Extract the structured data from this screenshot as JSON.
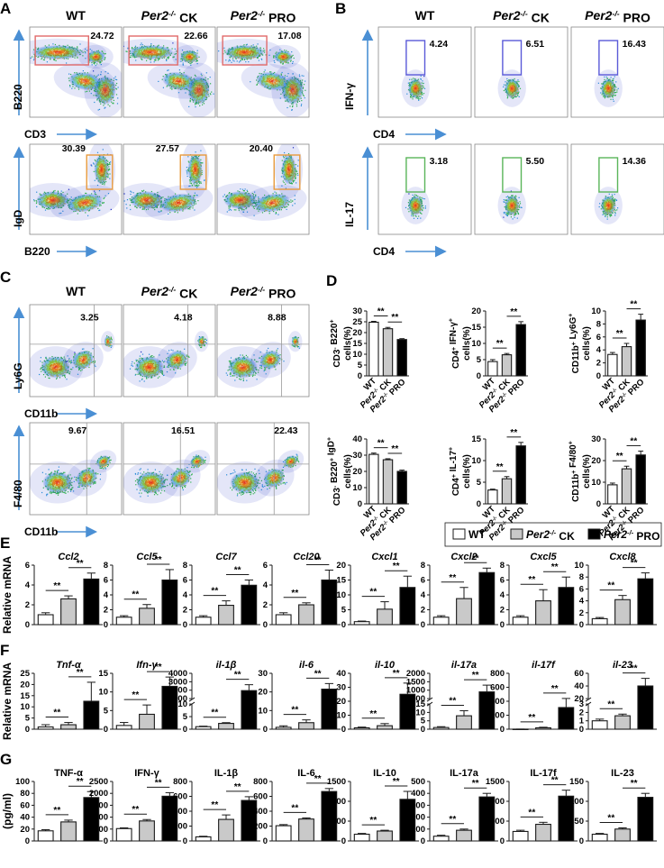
{
  "colors": {
    "axis": "#1a1a1a",
    "arrow": "#4a8fd4",
    "gate_red": "#e06a6a",
    "gate_orange": "#e89a3c",
    "gate_blue": "#5a5ad8",
    "gate_green": "#5ab55a",
    "quad": "#9a9a9a"
  },
  "panel_labels": {
    "A": "A",
    "B": "B",
    "C": "C",
    "D": "D",
    "E": "E",
    "F": "F",
    "G": "G"
  },
  "groups": {
    "wt": "WT",
    "ck_base": "Per2",
    "ck_sup": "-/-",
    "ck_tail": " CK",
    "pro_base": "Per2",
    "pro_sup": "-/-",
    "pro_tail": " PRO"
  },
  "flow": {
    "A": {
      "top": {
        "y": "B220",
        "x": "CD3",
        "values": [
          "24.72",
          "22.66",
          "17.08"
        ]
      },
      "bottom": {
        "y": "IgD",
        "x": "B220",
        "values": [
          "30.39",
          "27.57",
          "20.40"
        ]
      }
    },
    "B": {
      "top": {
        "y": "IFN-γ",
        "x": "CD4",
        "values": [
          "4.24",
          "6.51",
          "16.43"
        ]
      },
      "bottom": {
        "y": "IL-17",
        "x": "CD4",
        "values": [
          "3.18",
          "5.50",
          "14.36"
        ]
      }
    },
    "C": {
      "top": {
        "y": "Ly6G",
        "x": "CD11b",
        "values": [
          "3.25",
          "4.18",
          "8.88"
        ]
      },
      "bottom": {
        "y": "F4/80",
        "x": "CD11b",
        "values": [
          "9.67",
          "16.51",
          "22.43"
        ]
      }
    }
  },
  "legend": {
    "wt": "WT",
    "ck": "Per2-/- CK",
    "pro": "Per2-/- PRO"
  },
  "row_labels": {
    "E": "Relative mRNA",
    "F": "Relative mRNA",
    "G": "(pg/ml)"
  },
  "sig_mark": "**",
  "chart_data": [
    {
      "panel": "D",
      "type": "bar",
      "title": "",
      "ylabel": "CD3- B220+ cells(%)",
      "categories": [
        "WT",
        "Per2-/- CK",
        "Per2-/- PRO"
      ],
      "values": [
        24.8,
        21.8,
        16.8
      ],
      "errors": [
        0.4,
        0.6,
        0.4
      ],
      "ylim": [
        0,
        30
      ],
      "yticks": [
        0,
        5,
        10,
        15,
        20,
        25,
        30
      ]
    },
    {
      "panel": "D",
      "type": "bar",
      "title": "",
      "ylabel": "CD4+ IFN-γ+ cells(%)",
      "categories": [
        "WT",
        "Per2-/- CK",
        "Per2-/- PRO"
      ],
      "values": [
        4.4,
        6.5,
        15.8
      ],
      "errors": [
        0.6,
        0.4,
        0.9
      ],
      "ylim": [
        0,
        20
      ],
      "yticks": [
        0,
        5,
        10,
        15,
        20
      ]
    },
    {
      "panel": "D",
      "type": "bar",
      "title": "",
      "ylabel": "CD11b+ Ly6G+ cells(%)",
      "categories": [
        "WT",
        "Per2-/- CK",
        "Per2-/- PRO"
      ],
      "values": [
        3.3,
        4.5,
        8.6
      ],
      "errors": [
        0.3,
        0.5,
        0.9
      ],
      "ylim": [
        0,
        10
      ],
      "yticks": [
        0,
        2,
        4,
        6,
        8,
        10
      ]
    },
    {
      "panel": "D",
      "type": "bar",
      "title": "",
      "ylabel": "CD3- B220+ IgD+ cells(%)",
      "categories": [
        "WT",
        "Per2-/- CK",
        "Per2-/- PRO"
      ],
      "values": [
        30.5,
        27.2,
        20.0
      ],
      "errors": [
        0.8,
        0.6,
        0.8
      ],
      "ylim": [
        0,
        40
      ],
      "yticks": [
        0,
        10,
        20,
        30,
        40
      ]
    },
    {
      "panel": "D",
      "type": "bar",
      "title": "",
      "ylabel": "CD4+ IL-17+ cells(%)",
      "categories": [
        "WT",
        "Per2-/- CK",
        "Per2-/- PRO"
      ],
      "values": [
        3.2,
        5.8,
        13.4
      ],
      "errors": [
        0.2,
        0.5,
        0.8
      ],
      "ylim": [
        0,
        15
      ],
      "yticks": [
        0,
        5,
        10,
        15
      ]
    },
    {
      "panel": "D",
      "type": "bar",
      "title": "",
      "ylabel": "CD11b+ F4/80+ cells(%)",
      "categories": [
        "WT",
        "Per2-/- CK",
        "Per2-/- PRO"
      ],
      "values": [
        8.8,
        16.2,
        22.6
      ],
      "errors": [
        0.8,
        1.2,
        1.8
      ],
      "ylim": [
        0,
        30
      ],
      "yticks": [
        0,
        10,
        20,
        30
      ]
    },
    {
      "panel": "E",
      "type": "bar",
      "title": "Ccl2",
      "categories": [
        "WT",
        "Per2-/- CK",
        "Per2-/- PRO"
      ],
      "values": [
        1.0,
        2.6,
        4.6
      ],
      "errors": [
        0.2,
        0.3,
        0.6
      ],
      "ylim": [
        0,
        6
      ],
      "yticks": [
        0,
        2,
        4,
        6
      ]
    },
    {
      "panel": "E",
      "type": "bar",
      "title": "Ccl5",
      "categories": [
        "WT",
        "Per2-/- CK",
        "Per2-/- PRO"
      ],
      "values": [
        1.0,
        2.2,
        6.0
      ],
      "errors": [
        0.2,
        0.5,
        1.4
      ],
      "ylim": [
        0,
        8
      ],
      "yticks": [
        0,
        2,
        4,
        6,
        8
      ]
    },
    {
      "panel": "E",
      "type": "bar",
      "title": "Ccl7",
      "categories": [
        "WT",
        "Per2-/- CK",
        "Per2-/- PRO"
      ],
      "values": [
        1.0,
        2.6,
        5.3
      ],
      "errors": [
        0.2,
        0.6,
        0.7
      ],
      "ylim": [
        0,
        8
      ],
      "yticks": [
        0,
        2,
        4,
        6,
        8
      ]
    },
    {
      "panel": "E",
      "type": "bar",
      "title": "Ccl20",
      "categories": [
        "WT",
        "Per2-/- CK",
        "Per2-/- PRO"
      ],
      "values": [
        1.0,
        2.0,
        4.5
      ],
      "errors": [
        0.2,
        0.2,
        1.0
      ],
      "ylim": [
        0,
        6
      ],
      "yticks": [
        0,
        2,
        4,
        6
      ]
    },
    {
      "panel": "E",
      "type": "bar",
      "title": "Cxcl1",
      "categories": [
        "WT",
        "Per2-/- CK",
        "Per2-/- PRO"
      ],
      "values": [
        1.0,
        5.2,
        12.5
      ],
      "errors": [
        0.2,
        2.5,
        3.8
      ],
      "ylim": [
        0,
        20
      ],
      "yticks": [
        0,
        5,
        10,
        15,
        20
      ]
    },
    {
      "panel": "E",
      "type": "bar",
      "title": "Cxcl2",
      "categories": [
        "WT",
        "Per2-/- CK",
        "Per2-/- PRO"
      ],
      "values": [
        1.0,
        3.5,
        7.0
      ],
      "errors": [
        0.2,
        1.5,
        0.6
      ],
      "ylim": [
        0,
        8
      ],
      "yticks": [
        0,
        2,
        4,
        6,
        8
      ]
    },
    {
      "panel": "E",
      "type": "bar",
      "title": "Cxcl5",
      "categories": [
        "WT",
        "Per2-/- CK",
        "Per2-/- PRO"
      ],
      "values": [
        1.0,
        3.2,
        5.0
      ],
      "errors": [
        0.2,
        1.5,
        1.4
      ],
      "ylim": [
        0,
        8
      ],
      "yticks": [
        0,
        2,
        4,
        6,
        8
      ]
    },
    {
      "panel": "E",
      "type": "bar",
      "title": "Cxcl8",
      "categories": [
        "WT",
        "Per2-/- CK",
        "Per2-/- PRO"
      ],
      "values": [
        1.0,
        4.2,
        7.7
      ],
      "errors": [
        0.2,
        0.7,
        1.0
      ],
      "ylim": [
        0,
        10
      ],
      "yticks": [
        0,
        2,
        4,
        6,
        8,
        10
      ]
    },
    {
      "panel": "F",
      "type": "bar",
      "title": "Tnf-α",
      "categories": [
        "WT",
        "Per2-/- CK",
        "Per2-/- PRO"
      ],
      "values": [
        1.0,
        2.0,
        12.5
      ],
      "errors": [
        1.0,
        1.0,
        8.5
      ],
      "ylim": [
        0,
        25
      ],
      "yticks": [
        0,
        5,
        10,
        15,
        20,
        25
      ]
    },
    {
      "panel": "F",
      "type": "bar",
      "title": "Ifn-γ",
      "categories": [
        "WT",
        "Per2-/- CK",
        "Per2-/- PRO"
      ],
      "values": [
        1.0,
        4.0,
        11.5
      ],
      "errors": [
        0.8,
        2.5,
        2.5
      ],
      "ylim": [
        0,
        15
      ],
      "yticks": [
        0,
        5,
        10,
        15
      ]
    },
    {
      "panel": "F",
      "type": "bar",
      "title": "il-1β",
      "categories": [
        "WT",
        "Per2-/- CK",
        "Per2-/- PRO"
      ],
      "values": [
        1.0,
        2.3,
        1950
      ],
      "errors": [
        0.2,
        0.3,
        700
      ],
      "break": {
        "lower": [
          0,
          10
        ],
        "upper": [
          1000,
          4000
        ]
      },
      "yticks_lower": [
        0,
        5,
        10
      ],
      "yticks_upper": [
        1000,
        2000,
        3000,
        4000
      ]
    },
    {
      "panel": "F",
      "type": "bar",
      "title": "il-6",
      "categories": [
        "WT",
        "Per2-/- CK",
        "Per2-/- PRO"
      ],
      "values": [
        1.0,
        3.5,
        21.5
      ],
      "errors": [
        0.8,
        1.5,
        3.0
      ],
      "ylim": [
        0,
        30
      ],
      "yticks": [
        0,
        10,
        20,
        30
      ]
    },
    {
      "panel": "F",
      "type": "bar",
      "title": "il-10",
      "categories": [
        "WT",
        "Per2-/- CK",
        "Per2-/- PRO"
      ],
      "values": [
        1.0,
        2.5,
        25.0
      ],
      "errors": [
        0.5,
        1.5,
        8.0
      ],
      "ylim": [
        0,
        40
      ],
      "yticks": [
        0,
        10,
        20,
        30,
        40
      ]
    },
    {
      "panel": "F",
      "type": "bar",
      "title": "il-17a",
      "categories": [
        "WT",
        "Per2-/- CK",
        "Per2-/- PRO"
      ],
      "values": [
        1.0,
        8.0,
        900
      ],
      "errors": [
        0.5,
        3.0,
        400
      ],
      "break": {
        "lower": [
          0,
          15
        ],
        "upper": [
          500,
          2000
        ]
      },
      "yticks_lower": [
        0,
        5,
        10,
        15
      ],
      "yticks_upper": [
        500,
        1000,
        1500,
        2000
      ]
    },
    {
      "panel": "F",
      "type": "bar",
      "title": "il-17f",
      "categories": [
        "WT",
        "Per2-/- CK",
        "Per2-/- PRO"
      ],
      "values": [
        1.0,
        20,
        310
      ],
      "errors": [
        0.5,
        8,
        130
      ],
      "ylim": [
        0,
        800
      ],
      "yticks": [
        0,
        200,
        400,
        600,
        800
      ]
    },
    {
      "panel": "F",
      "type": "bar",
      "title": "il-23",
      "categories": [
        "WT",
        "Per2-/- CK",
        "Per2-/- PRO"
      ],
      "values": [
        1.0,
        1.6,
        40
      ],
      "errors": [
        0.2,
        0.2,
        12
      ],
      "break": {
        "lower": [
          0,
          3
        ],
        "upper": [
          20,
          60
        ]
      },
      "yticks_lower": [
        0,
        1,
        2,
        3
      ],
      "yticks_upper": [
        20,
        40,
        60
      ]
    },
    {
      "panel": "G",
      "type": "bar",
      "title": "TNF-α",
      "categories": [
        "WT",
        "Per2-/- CK",
        "Per2-/- PRO"
      ],
      "values": [
        17,
        32,
        73
      ],
      "errors": [
        2,
        3,
        10
      ],
      "ylim": [
        0,
        100
      ],
      "yticks": [
        0,
        20,
        40,
        60,
        80,
        100
      ]
    },
    {
      "panel": "G",
      "type": "bar",
      "title": "IFN-γ",
      "categories": [
        "WT",
        "Per2-/- CK",
        "Per2-/- PRO"
      ],
      "values": [
        520,
        840,
        1880
      ],
      "errors": [
        30,
        60,
        150
      ],
      "ylim": [
        0,
        2500
      ],
      "yticks": [
        0,
        500,
        1000,
        1500,
        2000,
        2500
      ]
    },
    {
      "panel": "G",
      "type": "bar",
      "title": "IL-1β",
      "categories": [
        "WT",
        "Per2-/- CK",
        "Per2-/- PRO"
      ],
      "values": [
        55,
        290,
        545
      ],
      "errors": [
        8,
        60,
        50
      ],
      "ylim": [
        0,
        800
      ],
      "yticks": [
        0,
        200,
        400,
        600,
        800
      ]
    },
    {
      "panel": "G",
      "type": "bar",
      "title": "IL-6",
      "categories": [
        "WT",
        "Per2-/- CK",
        "Per2-/- PRO"
      ],
      "values": [
        205,
        295,
        665
      ],
      "errors": [
        15,
        15,
        40
      ],
      "ylim": [
        0,
        800
      ],
      "yticks": [
        0,
        200,
        400,
        600,
        800
      ]
    },
    {
      "panel": "G",
      "type": "bar",
      "title": "IL-10",
      "categories": [
        "WT",
        "Per2-/- CK",
        "Per2-/- PRO"
      ],
      "values": [
        170,
        250,
        1050
      ],
      "errors": [
        20,
        20,
        200
      ],
      "ylim": [
        0,
        1500
      ],
      "yticks": [
        0,
        500,
        1000,
        1500
      ]
    },
    {
      "panel": "G",
      "type": "bar",
      "title": "IL-17a",
      "categories": [
        "WT",
        "Per2-/- CK",
        "Per2-/- PRO"
      ],
      "values": [
        40,
        90,
        370
      ],
      "errors": [
        8,
        10,
        30
      ],
      "ylim": [
        0,
        500
      ],
      "yticks": [
        0,
        100,
        200,
        300,
        400,
        500
      ]
    },
    {
      "panel": "G",
      "type": "bar",
      "title": "IL-17f",
      "categories": [
        "WT",
        "Per2-/- CK",
        "Per2-/- PRO"
      ],
      "values": [
        240,
        420,
        1130
      ],
      "errors": [
        30,
        50,
        150
      ],
      "ylim": [
        0,
        1500
      ],
      "yticks": [
        0,
        500,
        1000,
        1500
      ]
    },
    {
      "panel": "G",
      "type": "bar",
      "title": "IL-23",
      "categories": [
        "WT",
        "Per2-/- CK",
        "Per2-/- PRO"
      ],
      "values": [
        17,
        30,
        110
      ],
      "errors": [
        2,
        3,
        10
      ],
      "ylim": [
        0,
        150
      ],
      "yticks": [
        0,
        50,
        100,
        150
      ]
    }
  ]
}
